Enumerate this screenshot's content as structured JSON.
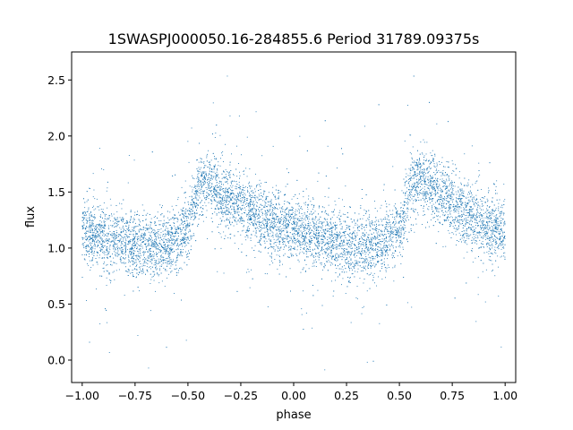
{
  "chart_data": {
    "type": "scatter",
    "title": "1SWASPJ000050.16-284855.6 Period 31789.09375s",
    "xlabel": "phase",
    "ylabel": "flux",
    "xlim": [
      -1.05,
      1.05
    ],
    "ylim": [
      -0.2,
      2.75
    ],
    "xticks": [
      -1.0,
      -0.75,
      -0.5,
      -0.25,
      0.0,
      0.25,
      0.5,
      0.75,
      1.0
    ],
    "xtick_labels": [
      "−1.00",
      "−0.75",
      "−0.50",
      "−0.25",
      "0.00",
      "0.25",
      "0.50",
      "0.75",
      "1.00"
    ],
    "yticks": [
      0.0,
      0.5,
      1.0,
      1.5,
      2.0,
      2.5
    ],
    "ytick_labels": [
      "0.0",
      "0.5",
      "1.0",
      "1.5",
      "2.0",
      "2.5"
    ],
    "grid": false,
    "marker_color": "#1f77b4",
    "x_range": [
      -1.0,
      1.0
    ],
    "series": [
      {
        "profile_phase": [
          -1.0,
          -0.9,
          -0.8,
          -0.7,
          -0.6,
          -0.5,
          -0.45,
          -0.4,
          -0.35,
          -0.3,
          -0.25,
          -0.2,
          -0.1,
          0.0,
          0.1,
          0.2,
          0.3,
          0.4,
          0.5,
          0.55,
          0.6,
          0.65,
          0.7,
          0.75,
          0.8,
          0.9,
          1.0
        ],
        "profile_flux": [
          1.15,
          1.1,
          1.05,
          1.02,
          1.03,
          1.15,
          1.55,
          1.6,
          1.5,
          1.42,
          1.38,
          1.32,
          1.22,
          1.15,
          1.1,
          1.05,
          1.02,
          1.03,
          1.15,
          1.5,
          1.6,
          1.55,
          1.45,
          1.4,
          1.32,
          1.22,
          1.15
        ]
      }
    ]
  }
}
